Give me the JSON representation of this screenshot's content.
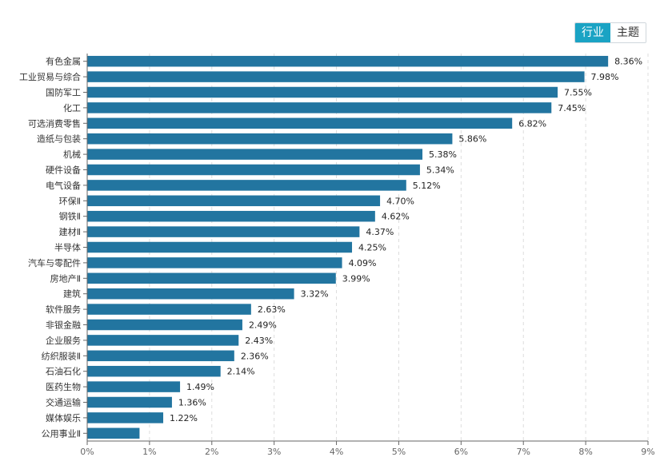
{
  "toggle": {
    "active_label": "行业",
    "inactive_label": "主题",
    "active_color": "#1aa3c4"
  },
  "chart_data": {
    "type": "bar",
    "orientation": "horizontal",
    "categories": [
      "有色金属",
      "工业贸易与综合",
      "国防军工",
      "化工",
      "可选消费零售",
      "造纸与包装",
      "机械",
      "硬件设备",
      "电气设备",
      "环保Ⅱ",
      "钢铁Ⅱ",
      "建材Ⅱ",
      "半导体",
      "汽车与零配件",
      "房地产Ⅱ",
      "建筑",
      "软件服务",
      "非银金融",
      "企业服务",
      "纺织服装Ⅱ",
      "石油石化",
      "医药生物",
      "交通运输",
      "媒体娱乐",
      "公用事业Ⅱ"
    ],
    "values": [
      8.36,
      7.98,
      7.55,
      7.45,
      6.82,
      5.86,
      5.38,
      5.34,
      5.12,
      4.7,
      4.62,
      4.37,
      4.25,
      4.09,
      3.99,
      3.32,
      2.63,
      2.49,
      2.43,
      2.36,
      2.14,
      1.49,
      1.36,
      1.22,
      0.84
    ],
    "value_labels": [
      "8.36%",
      "7.98%",
      "7.55%",
      "7.45%",
      "6.82%",
      "5.86%",
      "5.38%",
      "5.34%",
      "5.12%",
      "4.70%",
      "4.62%",
      "4.37%",
      "4.25%",
      "4.09%",
      "3.99%",
      "3.32%",
      "2.63%",
      "2.49%",
      "2.43%",
      "2.36%",
      "2.14%",
      "1.49%",
      "1.36%",
      "1.22%",
      ""
    ],
    "xlim": [
      0,
      9
    ],
    "x_ticks": [
      "0%",
      "1%",
      "2%",
      "3%",
      "4%",
      "5%",
      "6%",
      "7%",
      "8%",
      "9%"
    ],
    "grid": "vertical dashed",
    "bar_color": "#2275a0"
  }
}
